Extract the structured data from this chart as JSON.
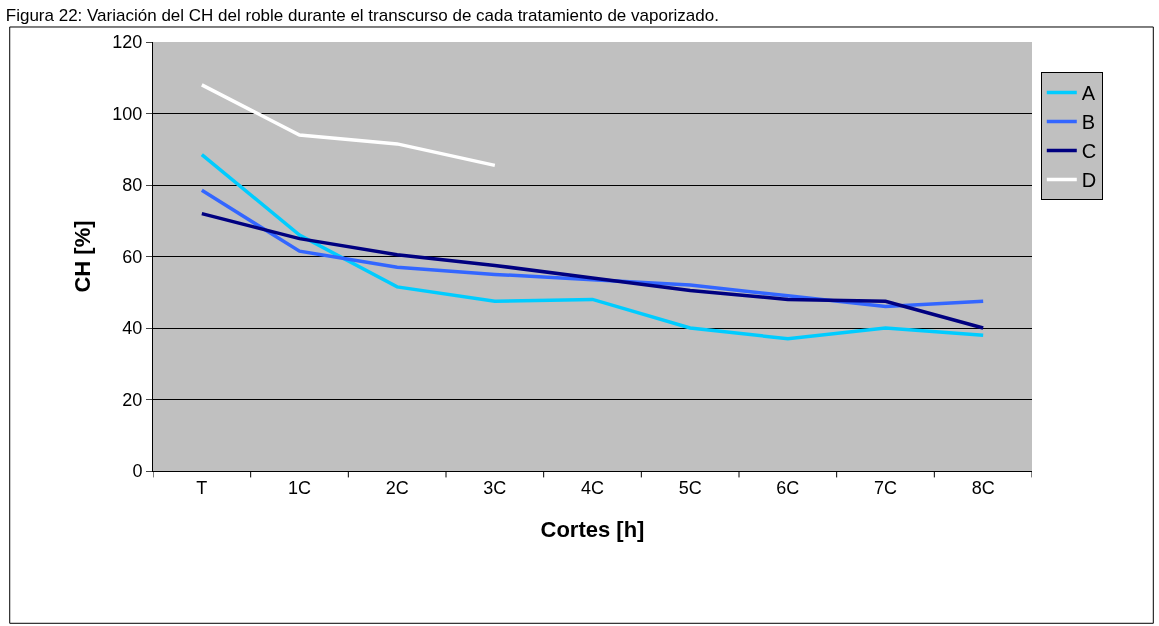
{
  "chart_data": {
    "type": "line",
    "title": "Figura 22: Variación del CH del roble durante el transcurso de cada tratamiento de vaporizado.",
    "xlabel": "Cortes [h]",
    "ylabel": "CH [%]",
    "categories": [
      "T",
      "1C",
      "2C",
      "3C",
      "4C",
      "5C",
      "6C",
      "7C",
      "8C"
    ],
    "series": [
      {
        "name": "A",
        "color": "#00ccff",
        "values": [
          88.5,
          66,
          51.5,
          47.5,
          48,
          40,
          37,
          40,
          38
        ]
      },
      {
        "name": "B",
        "color": "#3366ff",
        "values": [
          78.5,
          61.5,
          57,
          55,
          53.5,
          52,
          49,
          46,
          47.5
        ]
      },
      {
        "name": "C",
        "color": "#000080",
        "values": [
          72,
          65,
          60.5,
          57.5,
          54,
          50.5,
          48,
          47.5,
          40
        ]
      },
      {
        "name": "D",
        "color": "#ffffff",
        "values": [
          108,
          94,
          91.5,
          85.5,
          null,
          null,
          null,
          null,
          null
        ]
      }
    ],
    "ylim": [
      0,
      120
    ],
    "yticks": [
      0,
      20,
      40,
      60,
      80,
      100,
      120
    ],
    "grid": "y",
    "legend": "right",
    "marker": "none",
    "line_style": "solid"
  }
}
